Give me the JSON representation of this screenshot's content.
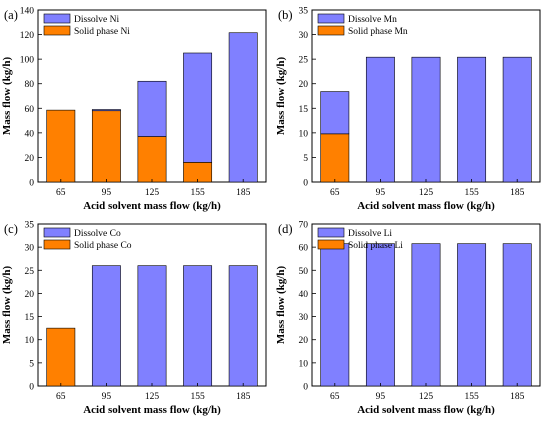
{
  "colors": {
    "dissolved": "#8080ff",
    "solid": "#ff8000",
    "edge": "#000000"
  },
  "chart_data": [
    {
      "type": "bar",
      "stacked": true,
      "panel_label": "(a)",
      "categories": [
        "65",
        "95",
        "125",
        "155",
        "185"
      ],
      "series": [
        {
          "name": "Solid phase Ni",
          "role": "solid",
          "values": [
            58.5,
            58,
            37,
            16,
            0
          ]
        },
        {
          "name": "Dissolve Ni",
          "role": "dissolved",
          "values": [
            0,
            1,
            45,
            89,
            121.5
          ]
        }
      ],
      "xlabel": "Acid solvent mass flow (kg/h)",
      "ylabel": "Mass flow (kg/h)",
      "ylim": [
        0,
        140
      ],
      "yticks": [
        0,
        20,
        40,
        60,
        80,
        100,
        120,
        140
      ],
      "legend": "top-left",
      "grid": false
    },
    {
      "type": "bar",
      "stacked": true,
      "panel_label": "(b)",
      "categories": [
        "65",
        "95",
        "125",
        "155",
        "185"
      ],
      "series": [
        {
          "name": "Solid phase Mn",
          "role": "solid",
          "values": [
            9.8,
            0,
            0,
            0,
            0
          ]
        },
        {
          "name": "Dissolve Mn",
          "role": "dissolved",
          "values": [
            8.6,
            25.4,
            25.4,
            25.4,
            25.4
          ]
        }
      ],
      "xlabel": "Acid solvent mass flow (kg/h)",
      "ylabel": "Mass flow (kg/h)",
      "ylim": [
        0,
        35
      ],
      "yticks": [
        0,
        5,
        10,
        15,
        20,
        25,
        30,
        35
      ],
      "legend": "top-left",
      "grid": false
    },
    {
      "type": "bar",
      "stacked": true,
      "panel_label": "(c)",
      "categories": [
        "65",
        "95",
        "125",
        "155",
        "185"
      ],
      "series": [
        {
          "name": "Solid phase Co",
          "role": "solid",
          "values": [
            12.5,
            0,
            0,
            0,
            0
          ]
        },
        {
          "name": "Dissolve Co",
          "role": "dissolved",
          "values": [
            0,
            26,
            26,
            26,
            26
          ]
        }
      ],
      "xlabel": "Acid solvent mass flow (kg/h)",
      "ylabel": "Mass flow (kg/h)",
      "ylim": [
        0,
        35
      ],
      "yticks": [
        0,
        5,
        10,
        15,
        20,
        25,
        30,
        35
      ],
      "legend": "top-left",
      "grid": false
    },
    {
      "type": "bar",
      "stacked": true,
      "panel_label": "(d)",
      "categories": [
        "65",
        "95",
        "125",
        "155",
        "185"
      ],
      "series": [
        {
          "name": "Solid phase Li",
          "role": "solid",
          "values": [
            0,
            0,
            0,
            0,
            0
          ]
        },
        {
          "name": "Dissolve Li",
          "role": "dissolved",
          "values": [
            61.5,
            61.5,
            61.5,
            61.5,
            61.5
          ]
        }
      ],
      "xlabel": "Acid solvent mass flow (kg/h)",
      "ylabel": "Mass flow (kg/h)",
      "ylim": [
        0,
        70
      ],
      "yticks": [
        0,
        10,
        20,
        30,
        40,
        50,
        60,
        70
      ],
      "legend": "top-left",
      "grid": false
    }
  ]
}
